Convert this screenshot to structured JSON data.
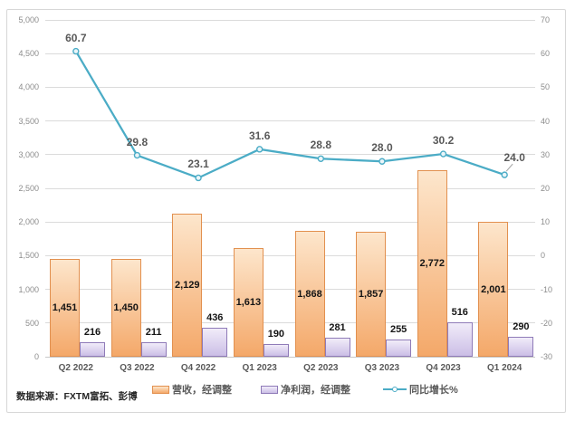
{
  "source_note": "数据来源：FXTM富拓、彭博",
  "colors": {
    "frame_border": "#D7D7D7",
    "gridline": "#DBDBDB",
    "revenue_fill_top": "#FDE6CC",
    "revenue_fill_bottom": "#F4A869",
    "revenue_border": "#E2904F",
    "profit_fill_top": "#F1ECF9",
    "profit_fill_bottom": "#CBBEE6",
    "profit_border": "#8F7BB8",
    "line": "#4BACC6",
    "line_label": "#595959",
    "axis_tick": "#8C8C8C"
  },
  "chart_data": {
    "type": "combo",
    "title": "",
    "categories": [
      "Q2 2022",
      "Q3 2022",
      "Q4 2022",
      "Q1 2023",
      "Q2 2023",
      "Q3 2023",
      "Q4 2023",
      "Q1 2024"
    ],
    "series": [
      {
        "name": "营收，经调整",
        "type": "bar",
        "axis": "left",
        "values": [
          1451,
          1450,
          2129,
          1613,
          1868,
          1857,
          2772,
          2001
        ],
        "labels": [
          "1,451",
          "1,450",
          "2,129",
          "1,613",
          "1,868",
          "1,857",
          "2,772",
          "2,001"
        ]
      },
      {
        "name": "净利润，经调整",
        "type": "bar",
        "axis": "left",
        "values": [
          216,
          211,
          436,
          190,
          281,
          255,
          516,
          290
        ],
        "labels": [
          "216",
          "211",
          "436",
          "190",
          "281",
          "255",
          "516",
          "290"
        ]
      },
      {
        "name": "同比增长%",
        "type": "line",
        "axis": "right",
        "values": [
          60.7,
          29.8,
          23.1,
          31.6,
          28.8,
          28.0,
          30.2,
          24.0
        ],
        "labels": [
          "60.7",
          "29.8",
          "23.1",
          "31.6",
          "28.8",
          "28.0",
          "30.2",
          "24.0"
        ]
      }
    ],
    "left_axis": {
      "min": 0,
      "max": 5000,
      "step": 500,
      "tick_labels": [
        "0",
        "500",
        "1,000",
        "1,500",
        "2,000",
        "2,500",
        "3,000",
        "3,500",
        "4,000",
        "4,500",
        "5,000"
      ]
    },
    "right_axis": {
      "min": -30,
      "max": 70,
      "step": 10,
      "tick_labels": [
        "-30",
        "-20",
        "-10",
        "0",
        "10",
        "20",
        "30",
        "40",
        "50",
        "60",
        "70"
      ]
    },
    "legend_position": "bottom",
    "grid": true
  }
}
